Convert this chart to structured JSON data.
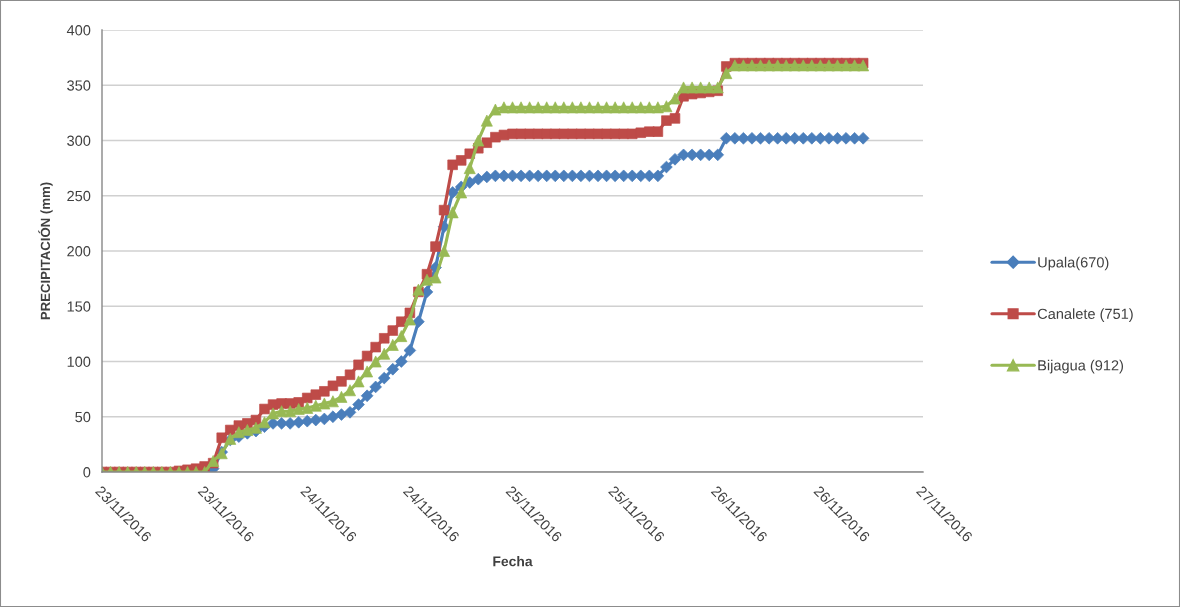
{
  "chart_data": {
    "type": "line",
    "xlabel": "Fecha",
    "ylabel": "PRECIPITACIÓN (mm)",
    "x": [
      "2016-11-23T00:00",
      "2016-11-23T01:00",
      "2016-11-23T02:00",
      "2016-11-23T03:00",
      "2016-11-23T04:00",
      "2016-11-23T05:00",
      "2016-11-23T06:00",
      "2016-11-23T07:00",
      "2016-11-23T08:00",
      "2016-11-23T09:00",
      "2016-11-23T10:00",
      "2016-11-23T11:00",
      "2016-11-23T12:00",
      "2016-11-23T13:00",
      "2016-11-23T14:00",
      "2016-11-23T15:00",
      "2016-11-23T16:00",
      "2016-11-23T17:00",
      "2016-11-23T18:00",
      "2016-11-23T19:00",
      "2016-11-23T20:00",
      "2016-11-23T21:00",
      "2016-11-23T22:00",
      "2016-11-23T23:00",
      "2016-11-24T00:00",
      "2016-11-24T01:00",
      "2016-11-24T02:00",
      "2016-11-24T03:00",
      "2016-11-24T04:00",
      "2016-11-24T05:00",
      "2016-11-24T06:00",
      "2016-11-24T07:00",
      "2016-11-24T08:00",
      "2016-11-24T09:00",
      "2016-11-24T10:00",
      "2016-11-24T11:00",
      "2016-11-24T12:00",
      "2016-11-24T13:00",
      "2016-11-24T14:00",
      "2016-11-24T15:00",
      "2016-11-24T16:00",
      "2016-11-24T17:00",
      "2016-11-24T18:00",
      "2016-11-24T19:00",
      "2016-11-24T20:00",
      "2016-11-24T21:00",
      "2016-11-24T22:00",
      "2016-11-24T23:00",
      "2016-11-25T00:00",
      "2016-11-25T01:00",
      "2016-11-25T02:00",
      "2016-11-25T03:00",
      "2016-11-25T04:00",
      "2016-11-25T05:00",
      "2016-11-25T06:00",
      "2016-11-25T07:00",
      "2016-11-25T08:00",
      "2016-11-25T09:00",
      "2016-11-25T10:00",
      "2016-11-25T11:00",
      "2016-11-25T12:00",
      "2016-11-25T13:00",
      "2016-11-25T14:00",
      "2016-11-25T15:00",
      "2016-11-25T16:00",
      "2016-11-25T17:00",
      "2016-11-25T18:00",
      "2016-11-25T19:00",
      "2016-11-25T20:00",
      "2016-11-25T21:00",
      "2016-11-25T22:00",
      "2016-11-25T23:00",
      "2016-11-26T00:00",
      "2016-11-26T01:00",
      "2016-11-26T02:00",
      "2016-11-26T03:00",
      "2016-11-26T04:00",
      "2016-11-26T05:00",
      "2016-11-26T06:00",
      "2016-11-26T07:00",
      "2016-11-26T08:00",
      "2016-11-26T09:00",
      "2016-11-26T10:00",
      "2016-11-26T11:00",
      "2016-11-26T12:00",
      "2016-11-26T13:00",
      "2016-11-26T14:00",
      "2016-11-26T15:00",
      "2016-11-26T16:00",
      "2016-11-26T17:00"
    ],
    "series": [
      {
        "name": "Upala(670)",
        "color": "#4a7ebb",
        "marker": "diamond",
        "values": [
          null,
          null,
          null,
          null,
          null,
          null,
          null,
          null,
          null,
          null,
          null,
          0,
          0,
          3,
          18,
          29,
          32,
          35,
          37,
          41,
          44,
          44,
          44,
          45,
          46,
          47,
          48,
          50,
          52,
          54,
          61,
          69,
          77,
          85,
          93,
          100,
          110,
          136,
          163,
          185,
          222,
          253,
          258,
          262,
          265,
          267,
          268,
          268,
          268,
          268,
          268,
          268,
          268,
          268,
          268,
          268,
          268,
          268,
          268,
          268,
          268,
          268,
          268,
          268,
          268,
          268,
          276,
          283,
          287,
          287,
          287,
          287,
          287,
          302,
          302,
          302,
          302,
          302,
          302,
          302,
          302,
          302,
          302,
          302,
          302,
          302,
          302,
          302,
          302,
          302
        ]
      },
      {
        "name": "Canalete (751)",
        "color": "#be4b48",
        "marker": "square",
        "values": [
          0,
          0,
          0,
          0,
          0,
          0,
          0,
          0,
          0,
          1,
          2,
          3,
          5,
          8,
          31,
          38,
          42,
          44,
          47,
          57,
          61,
          62,
          62,
          63,
          67,
          70,
          73,
          78,
          82,
          88,
          97,
          105,
          113,
          121,
          128,
          136,
          144,
          163,
          179,
          204,
          237,
          278,
          282,
          288,
          293,
          298,
          303,
          305,
          306,
          306,
          306,
          306,
          306,
          306,
          306,
          306,
          306,
          306,
          306,
          306,
          306,
          306,
          306,
          307,
          308,
          308,
          318,
          320,
          340,
          342,
          343,
          344,
          345,
          367,
          370,
          370,
          370,
          370,
          370,
          370,
          370,
          370,
          370,
          370,
          370,
          370,
          370,
          370,
          370,
          370
        ]
      },
      {
        "name": "Bijagua (912)",
        "color": "#98b954",
        "marker": "triangle",
        "values": [
          0,
          0,
          0,
          0,
          0,
          0,
          0,
          0,
          0,
          0,
          0,
          0,
          0,
          10,
          17,
          30,
          36,
          38,
          40,
          45,
          53,
          55,
          55,
          57,
          58,
          60,
          62,
          64,
          68,
          74,
          82,
          91,
          100,
          107,
          115,
          123,
          138,
          165,
          174,
          176,
          200,
          235,
          253,
          275,
          300,
          318,
          328,
          330,
          330,
          330,
          330,
          330,
          330,
          330,
          330,
          330,
          330,
          330,
          330,
          330,
          330,
          330,
          330,
          330,
          330,
          330,
          331,
          338,
          348,
          348,
          348,
          348,
          348,
          361,
          368,
          368,
          368,
          368,
          368,
          368,
          368,
          368,
          368,
          368,
          368,
          368,
          368,
          368,
          368,
          368
        ]
      }
    ],
    "xlim": [
      "2016-11-23T00:00",
      "2016-11-27T00:00"
    ],
    "xticks": [
      {
        "value": "2016-11-23T00:00",
        "label": "23/11/2016"
      },
      {
        "value": "2016-11-23T12:00",
        "label": "23/11/2016"
      },
      {
        "value": "2016-11-24T00:00",
        "label": "24/11/2016"
      },
      {
        "value": "2016-11-24T12:00",
        "label": "24/11/2016"
      },
      {
        "value": "2016-11-25T00:00",
        "label": "25/11/2016"
      },
      {
        "value": "2016-11-25T12:00",
        "label": "25/11/2016"
      },
      {
        "value": "2016-11-26T00:00",
        "label": "26/11/2016"
      },
      {
        "value": "2016-11-26T12:00",
        "label": "26/11/2016"
      },
      {
        "value": "2016-11-27T00:00",
        "label": "27/11/2016"
      }
    ],
    "ylim": [
      0,
      400
    ],
    "yticks": [
      0,
      50,
      100,
      150,
      200,
      250,
      300,
      350,
      400
    ],
    "grid": "y",
    "legend": "right",
    "line_style": "solid"
  }
}
